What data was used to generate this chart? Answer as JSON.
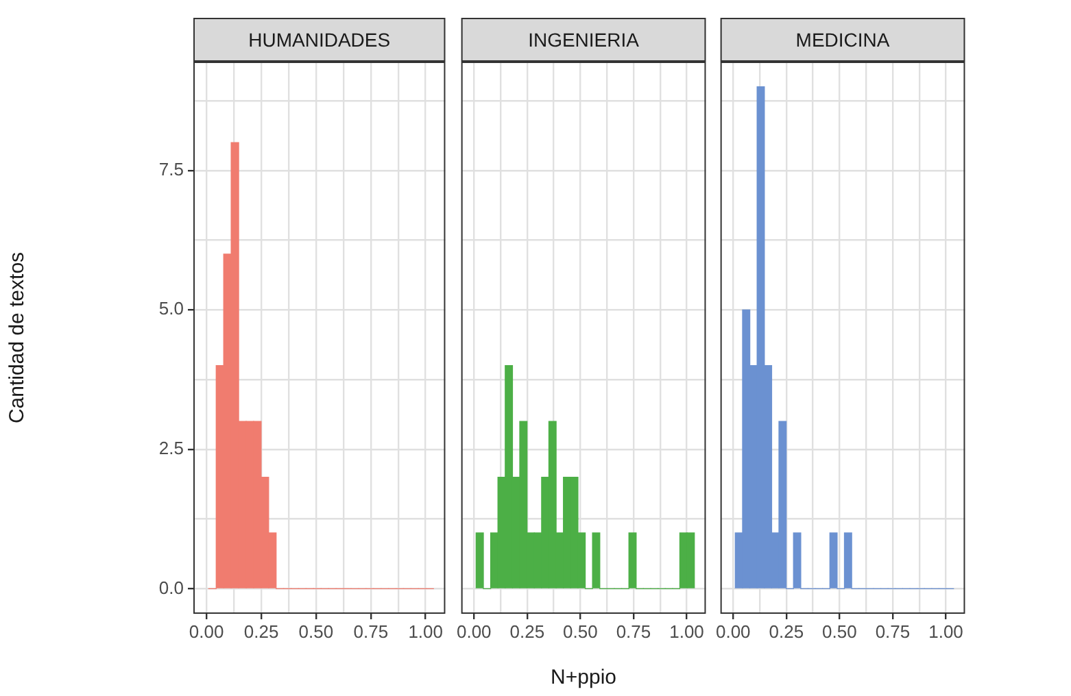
{
  "chart_data": [
    {
      "type": "histogram",
      "title": "HUMANIDADES",
      "ylabel": "Cantidad de textos",
      "color": "#f07c6f",
      "bins": [
        0.01,
        0.0442,
        0.0784,
        0.1126,
        0.1468,
        0.181,
        0.2152,
        0.2494,
        0.2836,
        0.3178,
        0.352,
        0.3862,
        0.4204,
        0.4546,
        0.4888,
        0.523,
        0.5572,
        0.5914,
        0.6256,
        0.6598,
        0.694,
        0.7282,
        0.7624,
        0.7966,
        0.8308,
        0.865,
        0.8992,
        0.9334,
        0.9676,
        1.0018,
        1.036
      ],
      "values": [
        0,
        4,
        6,
        8,
        3,
        3,
        3,
        2,
        1,
        0,
        0,
        0,
        0,
        0,
        0,
        0,
        0,
        0,
        0,
        0,
        0,
        0,
        0,
        0,
        0,
        0,
        0,
        0,
        0,
        0
      ],
      "xlim": [
        -0.06,
        1.09
      ],
      "ylim": [
        -0.45,
        9.45
      ],
      "xticks": [
        {
          "value": 0,
          "label": "0.00"
        },
        {
          "value": 0.125,
          "label": null
        },
        {
          "value": 0.25,
          "label": "0.25"
        },
        {
          "value": 0.375,
          "label": null
        },
        {
          "value": 0.5,
          "label": "0.50"
        },
        {
          "value": 0.625,
          "label": null
        },
        {
          "value": 0.75,
          "label": "0.75"
        },
        {
          "value": 0.875,
          "label": null
        },
        {
          "value": 1,
          "label": "1.00"
        }
      ],
      "yticks": [
        {
          "value": 0,
          "label": "0.0"
        },
        {
          "value": 1.25,
          "label": null
        },
        {
          "value": 2.5,
          "label": "2.5"
        },
        {
          "value": 3.75,
          "label": null
        },
        {
          "value": 5,
          "label": "5.0"
        },
        {
          "value": 6.25,
          "label": null
        },
        {
          "value": 7.5,
          "label": "7.5"
        },
        {
          "value": 8.75,
          "label": null
        }
      ],
      "grid": true
    },
    {
      "type": "histogram",
      "title": "INGENIERIA",
      "xlabel": "N+ppio",
      "color": "#4caf46",
      "tick_labels": "x",
      "bins": [
        0.01,
        0.0442,
        0.0784,
        0.1126,
        0.1468,
        0.181,
        0.2152,
        0.2494,
        0.2836,
        0.3178,
        0.352,
        0.3862,
        0.4204,
        0.4546,
        0.4888,
        0.523,
        0.5572,
        0.5914,
        0.6256,
        0.6598,
        0.694,
        0.7282,
        0.7624,
        0.7966,
        0.8308,
        0.865,
        0.8992,
        0.9334,
        0.9676,
        1.0018,
        1.036
      ],
      "values": [
        1,
        0,
        1,
        2,
        4,
        2,
        3,
        1,
        1,
        2,
        3,
        1,
        2,
        2,
        1,
        0,
        1,
        0,
        0,
        0,
        0,
        1,
        0,
        0,
        0,
        0,
        0,
        0,
        1,
        1
      ],
      "xlim": [
        -0.06,
        1.09
      ],
      "ylim": [
        -0.45,
        9.45
      ],
      "xticks": [
        {
          "value": 0,
          "label": "0.00"
        },
        {
          "value": 0.125,
          "label": null
        },
        {
          "value": 0.25,
          "label": "0.25"
        },
        {
          "value": 0.375,
          "label": null
        },
        {
          "value": 0.5,
          "label": "0.50"
        },
        {
          "value": 0.625,
          "label": null
        },
        {
          "value": 0.75,
          "label": "0.75"
        },
        {
          "value": 0.875,
          "label": null
        },
        {
          "value": 1,
          "label": "1.00"
        }
      ],
      "yticks": [
        {
          "value": 0,
          "label": null
        },
        {
          "value": 1.25,
          "label": null
        },
        {
          "value": 2.5,
          "label": null
        },
        {
          "value": 3.75,
          "label": null
        },
        {
          "value": 5,
          "label": null
        },
        {
          "value": 6.25,
          "label": null
        },
        {
          "value": 7.5,
          "label": null
        },
        {
          "value": 8.75,
          "label": null
        }
      ],
      "grid": true
    },
    {
      "type": "histogram",
      "title": "MEDICINA",
      "color": "#6b91d1",
      "tick_labels": "x",
      "bins": [
        0.01,
        0.0442,
        0.0784,
        0.1126,
        0.1468,
        0.181,
        0.2152,
        0.2494,
        0.2836,
        0.3178,
        0.352,
        0.3862,
        0.4204,
        0.4546,
        0.4888,
        0.523,
        0.5572,
        0.5914,
        0.6256,
        0.6598,
        0.694,
        0.7282,
        0.7624,
        0.7966,
        0.8308,
        0.865,
        0.8992,
        0.9334,
        0.9676,
        1.0018,
        1.036
      ],
      "values": [
        1,
        5,
        4,
        9,
        4,
        1,
        3,
        0,
        1,
        0,
        0,
        0,
        0,
        1,
        0,
        1,
        0,
        0,
        0,
        0,
        0,
        0,
        0,
        0,
        0,
        0,
        0,
        0,
        0,
        0
      ],
      "xlim": [
        -0.06,
        1.09
      ],
      "ylim": [
        -0.45,
        9.45
      ],
      "xticks": [
        {
          "value": 0,
          "label": "0.00"
        },
        {
          "value": 0.125,
          "label": null
        },
        {
          "value": 0.25,
          "label": "0.25"
        },
        {
          "value": 0.375,
          "label": null
        },
        {
          "value": 0.5,
          "label": "0.50"
        },
        {
          "value": 0.625,
          "label": null
        },
        {
          "value": 0.75,
          "label": "0.75"
        },
        {
          "value": 0.875,
          "label": null
        },
        {
          "value": 1,
          "label": "1.00"
        }
      ],
      "yticks": [
        {
          "value": 0,
          "label": null
        },
        {
          "value": 1.25,
          "label": null
        },
        {
          "value": 2.5,
          "label": null
        },
        {
          "value": 3.75,
          "label": null
        },
        {
          "value": 5,
          "label": null
        },
        {
          "value": 6.25,
          "label": null
        },
        {
          "value": 7.5,
          "label": null
        },
        {
          "value": 8.75,
          "label": null
        }
      ],
      "grid": true
    }
  ]
}
